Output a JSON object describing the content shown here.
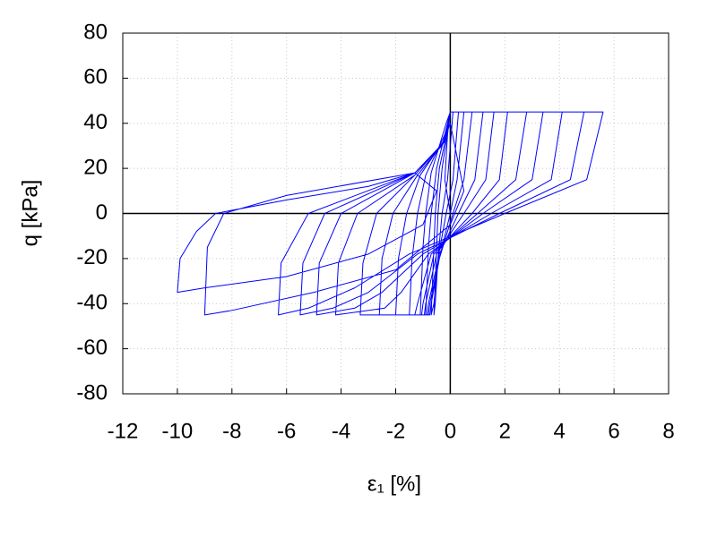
{
  "chart_data": {
    "type": "line",
    "xlabel": "ε₁ [%]",
    "ylabel": "q [kPa]",
    "xlim": [
      -12,
      8
    ],
    "ylim": [
      -80,
      80
    ],
    "xticks": [
      -12,
      -10,
      -8,
      -6,
      -4,
      -2,
      0,
      2,
      4,
      6,
      8
    ],
    "yticks": [
      -80,
      -60,
      -40,
      -20,
      0,
      20,
      40,
      60,
      80
    ],
    "grid": true,
    "color": "#0000ff",
    "x": [
      0,
      -0.2,
      -0.1,
      0,
      0.1,
      -0.1,
      -0.3,
      -0.45,
      -0.55,
      -0.6,
      -0.5,
      -0.45,
      -0.3,
      -0.05,
      0,
      0.3,
      0.1,
      -0.15,
      -0.45,
      -0.6,
      -0.7,
      -0.6,
      -0.55,
      -0.4,
      -0.05,
      0,
      0.5,
      0.25,
      0,
      -0.4,
      -0.7,
      -0.75,
      -0.9,
      -0.8,
      -0.7,
      -0.5,
      -0.1,
      0,
      0.8,
      0.5,
      0.1,
      -0.4,
      -0.75,
      -0.8,
      -1.1,
      -1.0,
      -0.9,
      -0.7,
      -0.15,
      0,
      1.2,
      0.9,
      0.3,
      -0.4,
      -0.8,
      -0.85,
      -1.5,
      -1.4,
      -1.2,
      -0.9,
      -0.2,
      0,
      1.6,
      1.3,
      0.5,
      -0.5,
      -0.9,
      -0.95,
      -2.0,
      -1.9,
      -1.6,
      -1.1,
      -0.2,
      0,
      2.1,
      1.8,
      0.8,
      -0.6,
      -1.0,
      -1.05,
      -2.6,
      -2.5,
      -2.1,
      -1.2,
      -0.2,
      0,
      2.8,
      2.4,
      1.0,
      -0.7,
      -1.2,
      -1.3,
      -3.3,
      -3.2,
      -2.7,
      -1.3,
      -0.2,
      0,
      3.4,
      3.0,
      1.2,
      -0.8,
      -1.8,
      -2.4,
      -4.2,
      -4.1,
      -3.4,
      -1.3,
      -0.2,
      0,
      4.1,
      3.7,
      1.5,
      -1.0,
      -2.5,
      -3.5,
      -4.9,
      -4.8,
      -4.0,
      -1.3,
      -0.2,
      0,
      4.9,
      4.4,
      1.8,
      -1.2,
      -3.0,
      -4.3,
      -5.5,
      -5.4,
      -4.6,
      -1.3,
      -0.2,
      0,
      5.6,
      5.0,
      2.0,
      -1.5,
      -3.5,
      -5.2,
      -6.3,
      -6.2,
      -5.2,
      -1.3,
      -0.3,
      0,
      0.5,
      0,
      -2,
      -5,
      -8,
      -8.5,
      -9,
      -8.9,
      -8.3,
      -6,
      -1.3,
      -0.5,
      -1,
      -3,
      -6,
      -9,
      -10,
      -9.9,
      -9.3,
      -8.6,
      -6,
      -3,
      -1.3
    ],
    "values": [
      0,
      15,
      35,
      45,
      45,
      15,
      0,
      -20,
      -40,
      -45,
      -15,
      0,
      20,
      40,
      45,
      45,
      15,
      0,
      -20,
      -40,
      -45,
      -15,
      0,
      20,
      40,
      45,
      45,
      15,
      0,
      -20,
      -40,
      -45,
      -45,
      -15,
      0,
      20,
      40,
      45,
      45,
      15,
      0,
      -20,
      -40,
      -45,
      -45,
      -15,
      0,
      18,
      40,
      45,
      45,
      15,
      0,
      -18,
      -40,
      -45,
      -45,
      -20,
      0,
      17,
      35,
      45,
      45,
      15,
      0,
      -18,
      -40,
      -45,
      -45,
      -20,
      0,
      17,
      33,
      45,
      45,
      15,
      0,
      -18,
      -40,
      -45,
      -45,
      -20,
      0,
      17,
      32,
      45,
      45,
      15,
      0,
      -18,
      -40,
      -45,
      -45,
      -22,
      0,
      17,
      32,
      45,
      45,
      15,
      0,
      -18,
      -35,
      -42,
      -45,
      -22,
      0,
      17,
      32,
      45,
      45,
      15,
      0,
      -18,
      -35,
      -42,
      -45,
      -22,
      0,
      18,
      32,
      45,
      45,
      15,
      0,
      -18,
      -35,
      -42,
      -45,
      -22,
      0,
      18,
      32,
      45,
      45,
      15,
      0,
      -18,
      -33,
      -42,
      -45,
      -22,
      0,
      18,
      30,
      40,
      10,
      -5,
      -25,
      -35,
      -43,
      -44,
      -45,
      -15,
      0,
      8,
      18,
      10,
      -5,
      -18,
      -28,
      -33,
      -35,
      -20,
      -8,
      0,
      6,
      12,
      18
    ]
  }
}
